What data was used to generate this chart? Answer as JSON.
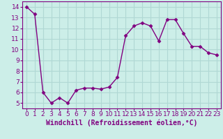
{
  "x": [
    0,
    1,
    2,
    3,
    4,
    5,
    6,
    7,
    8,
    9,
    10,
    11,
    12,
    13,
    14,
    15,
    16,
    17,
    18,
    19,
    20,
    21,
    22,
    23
  ],
  "y": [
    14.0,
    13.3,
    6.0,
    5.0,
    5.5,
    5.0,
    6.2,
    6.4,
    6.4,
    6.3,
    6.5,
    7.4,
    11.3,
    12.2,
    12.5,
    12.2,
    10.8,
    12.8,
    12.8,
    11.5,
    10.3,
    10.3,
    9.7,
    9.5
  ],
  "line_color": "#800080",
  "marker": "D",
  "marker_size": 2.5,
  "linewidth": 1.0,
  "xlabel": "Windchill (Refroidissement éolien,°C)",
  "xlabel_fontsize": 7,
  "ylim": [
    4.5,
    14.5
  ],
  "xlim": [
    -0.5,
    23.5
  ],
  "yticks": [
    5,
    6,
    7,
    8,
    9,
    10,
    11,
    12,
    13,
    14
  ],
  "xticks": [
    0,
    1,
    2,
    3,
    4,
    5,
    6,
    7,
    8,
    9,
    10,
    11,
    12,
    13,
    14,
    15,
    16,
    17,
    18,
    19,
    20,
    21,
    22,
    23
  ],
  "background_color": "#cceee8",
  "grid_color": "#b0d8d4",
  "tick_color": "#800080",
  "tick_fontsize": 6.5,
  "xlabel_color": "#800080",
  "spine_color": "#800080"
}
